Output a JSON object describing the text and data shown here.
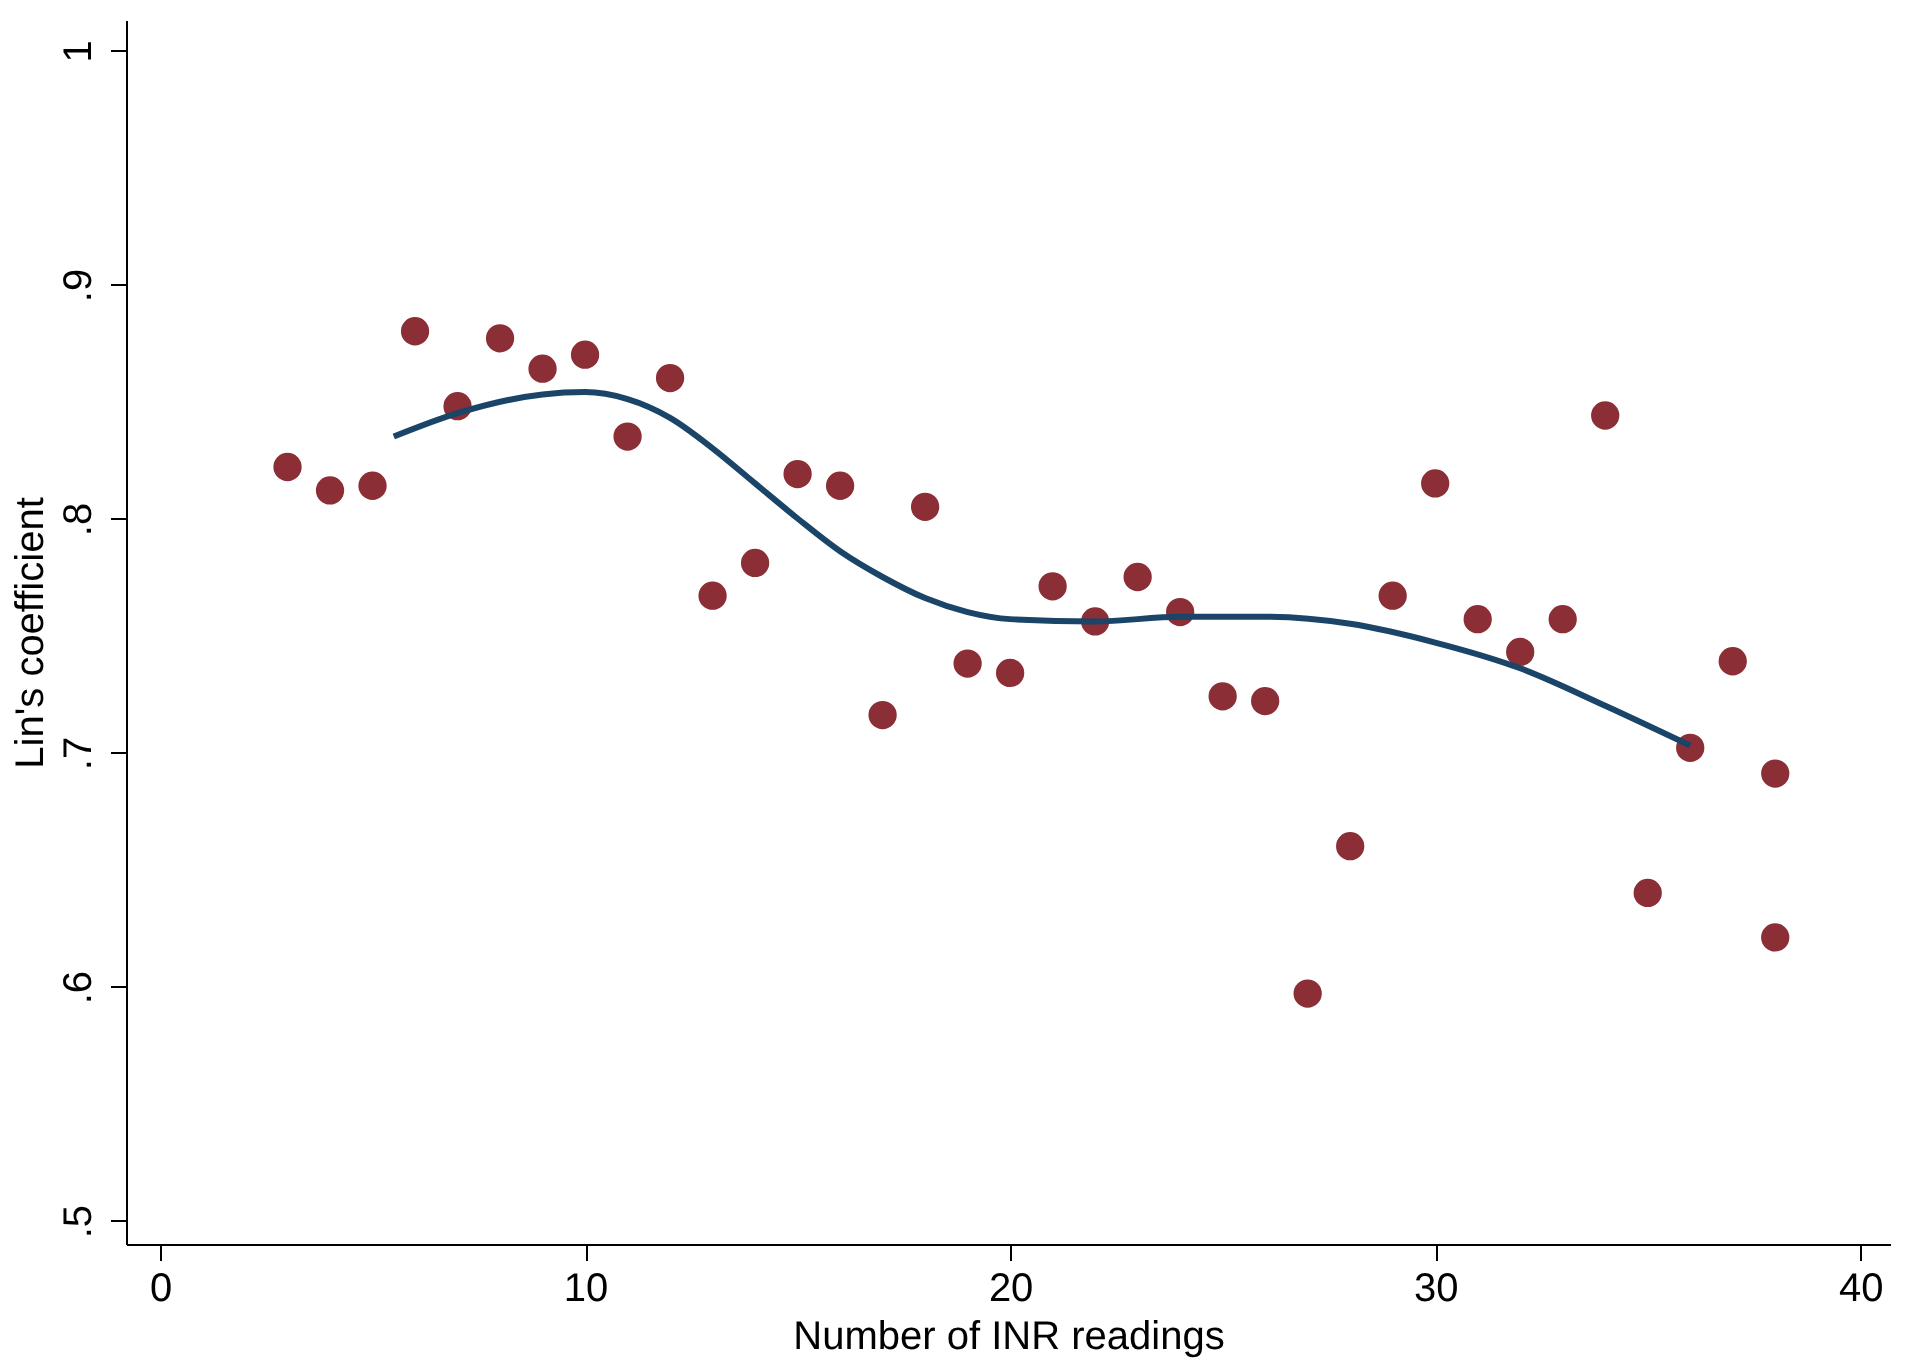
{
  "chart_data": {
    "type": "scatter",
    "xlabel": "Number of INR readings",
    "ylabel": "Lin's coefficient",
    "xlim": [
      -0.8,
      40.7
    ],
    "xticks": [
      0,
      10,
      20,
      30,
      40
    ],
    "ylim": [
      0.49,
      1.013
    ],
    "yticks": [
      {
        "value": 0.5,
        "label": ".5"
      },
      {
        "value": 0.6,
        "label": ".6"
      },
      {
        "value": 0.7,
        "label": ".7"
      },
      {
        "value": 0.8,
        "label": ".8"
      },
      {
        "value": 0.9,
        "label": ".9"
      },
      {
        "value": 1,
        "label": "1"
      }
    ],
    "grid": false,
    "marker": "circle",
    "series": [
      {
        "color": "#8b2e36",
        "x": [
          3,
          4,
          5,
          6,
          7,
          8,
          9,
          10,
          11,
          12,
          13,
          14,
          15,
          16,
          17,
          18,
          19,
          20,
          21,
          22,
          23,
          24,
          25,
          26,
          27,
          28,
          29,
          30,
          31,
          32,
          33,
          34,
          35,
          36,
          37,
          38,
          38
        ],
        "values": [
          0.822,
          0.812,
          0.814,
          0.88,
          0.848,
          0.877,
          0.864,
          0.87,
          0.835,
          0.86,
          0.767,
          0.781,
          0.819,
          0.814,
          0.716,
          0.805,
          0.738,
          0.734,
          0.771,
          0.756,
          0.775,
          0.76,
          0.724,
          0.722,
          0.597,
          0.66,
          0.767,
          0.815,
          0.757,
          0.743,
          0.757,
          0.844,
          0.64,
          0.702,
          0.739,
          0.691,
          0.621
        ]
      },
      {
        "type": "line",
        "marker": "none",
        "color": "#1a4468",
        "x": [
          5.5,
          7,
          9,
          10,
          11,
          12,
          13,
          14,
          15,
          16,
          17,
          18,
          19,
          20,
          22,
          24,
          26,
          28,
          30,
          32,
          34,
          36
        ],
        "values": [
          0.835,
          0.845,
          0.853,
          0.854,
          0.851,
          0.843,
          0.83,
          0.815,
          0.8,
          0.786,
          0.775,
          0.766,
          0.76,
          0.757,
          0.756,
          0.758,
          0.758,
          0.755,
          0.747,
          0.736,
          0.72,
          0.703
        ]
      }
    ]
  }
}
